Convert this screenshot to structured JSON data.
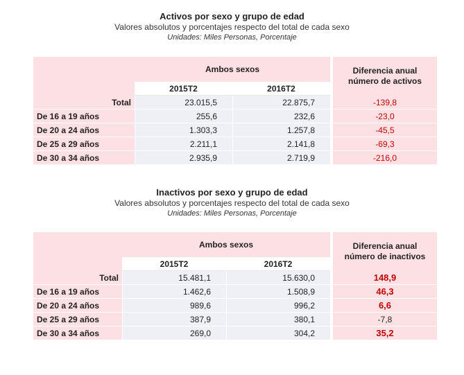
{
  "tables": [
    {
      "title": "Activos por sexo y grupo de edad",
      "subtitle": "Valores absolutos y porcentajes respecto del total de cada sexo",
      "units": "Unidades: Miles Personas, Porcentaje",
      "group_header": "Ambos sexos",
      "periods": [
        "2015T2",
        "2016T2"
      ],
      "diff_header_line1": "Diferencia anual",
      "diff_header_line2": "número de activos",
      "rows": [
        {
          "label": "Total",
          "v2015": "23.015,5",
          "v2016": "22.875,7",
          "diff": "-139,8"
        },
        {
          "label": "De 16 a 19 años",
          "v2015": "255,6",
          "v2016": "232,6",
          "diff": "-23,0"
        },
        {
          "label": "De 20 a 24 años",
          "v2015": "1.303,3",
          "v2016": "1.257,8",
          "diff": "-45,5"
        },
        {
          "label": "De 25 a 29 años",
          "v2015": "2.211,1",
          "v2016": "2.141,8",
          "diff": "-69,3"
        },
        {
          "label": "De 30 a 34 años",
          "v2015": "2.935,9",
          "v2016": "2.719,9",
          "diff": "-216,0"
        }
      ]
    },
    {
      "title": "Inactivos por sexo y grupo de edad",
      "subtitle": "Valores absolutos y porcentajes respecto del total de cada sexo",
      "units": "Unidades: Miles Personas, Porcentaje",
      "group_header": "Ambos sexos",
      "periods": [
        "2015T2",
        "2016T2"
      ],
      "diff_header_line1": "Diferencia anual",
      "diff_header_line2": "número de inactivos",
      "rows": [
        {
          "label": "Total",
          "v2015": "15.481,1",
          "v2016": "15.630,0",
          "diff": "148,9"
        },
        {
          "label": "De 16 a 19 años",
          "v2015": "1.462,6",
          "v2016": "1.508,9",
          "diff": "46,3"
        },
        {
          "label": "De 20 a 24 años",
          "v2015": "989,6",
          "v2016": "996,2",
          "diff": "6,6"
        },
        {
          "label": "De 25 a 29 años",
          "v2015": "387,9",
          "v2016": "380,1",
          "diff": "-7,8"
        },
        {
          "label": "De 30 a 34 años",
          "v2015": "269,0",
          "v2016": "304,2",
          "diff": "35,2"
        }
      ]
    }
  ],
  "colors": {
    "header_pink": "#fde0e3",
    "value_grey": "#eef0f5",
    "negative_red": "#c00000"
  }
}
